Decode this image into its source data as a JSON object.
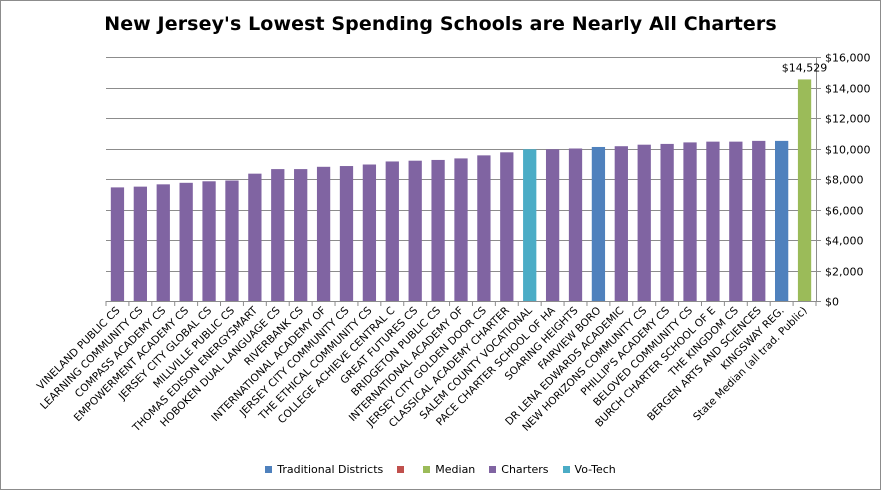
{
  "chart_data": {
    "type": "bar",
    "title": "New Jersey's Lowest Spending Schools are Nearly All Charters",
    "ylim": [
      0,
      16000
    ],
    "yticks": [
      "$0",
      "$2,000",
      "$4,000",
      "$6,000",
      "$8,000",
      "$10,000",
      "$12,000",
      "$14,000",
      "$16,000"
    ],
    "ytick_values": [
      0,
      2000,
      4000,
      6000,
      8000,
      10000,
      12000,
      14000,
      16000
    ],
    "y_axis_side": "right",
    "grid": true,
    "legend_position": "bottom",
    "categories": [
      "VINELAND PUBLIC CS",
      "LEARNING COMMUNITY CS",
      "COMPASS ACADEMY CS",
      "EMPOWERMENT ACADEMY CS",
      "JERSEY CITY GLOBAL CS",
      "MILLVILLE PUBLIC CS",
      "THOMAS EDISON ENERGYSMART",
      "HOBOKEN DUAL LANGUAGE CS",
      "RIVERBANK CS",
      "INTERNATIONAL ACADEMY OF",
      "JERSEY CITY COMMUNITY CS",
      "THE ETHICAL COMMUNITY CS",
      "COLLEGE ACHIEVE CENTRAL C",
      "GREAT FUTURES CS",
      "BRIDGETON PUBLIC CS",
      "INTERNATIONAL ACADEMY OF",
      "JERSEY CITY GOLDEN DOOR CS",
      "CLASSICAL ACADEMY CHARTER",
      "SALEM COUNTY VOCATIONAL",
      "PACE CHARTER SCHOOL OF HA",
      "SOARING HEIGHTS",
      "FAIRVIEW BORO",
      "DR LENA EDWARDS ACADEMIC",
      "NEW HORIZONS COMMUNITY CS",
      "PHILLIP'S ACADEMY CS",
      "BELOVED COMMUNITY CS",
      "BURCH CHARTER SCHOOL OF E",
      "THE KINGDOM CS",
      "BERGEN ARTS AND SCIENCES",
      "KINGSWAY REG.",
      "State Median (all trad. Public)"
    ],
    "values": [
      7450,
      7500,
      7650,
      7750,
      7850,
      7900,
      8350,
      8650,
      8650,
      8800,
      8850,
      8950,
      9150,
      9200,
      9250,
      9350,
      9550,
      9750,
      9950,
      9950,
      10000,
      10100,
      10150,
      10250,
      10300,
      10400,
      10450,
      10450,
      10500,
      10500,
      14529
    ],
    "groups": [
      "Charters",
      "Charters",
      "Charters",
      "Charters",
      "Charters",
      "Charters",
      "Charters",
      "Charters",
      "Charters",
      "Charters",
      "Charters",
      "Charters",
      "Charters",
      "Charters",
      "Charters",
      "Charters",
      "Charters",
      "Charters",
      "Vo-Tech",
      "Charters",
      "Charters",
      "Traditional Districts",
      "Charters",
      "Charters",
      "Charters",
      "Charters",
      "Charters",
      "Charters",
      "Charters",
      "Traditional Districts",
      "Median"
    ],
    "data_labels": [
      {
        "index": 30,
        "text": "$14,529"
      }
    ],
    "legend": [
      {
        "name": "Traditional Districts",
        "color": "#4f81bd"
      },
      {
        "name": "",
        "color": "#c0504d"
      },
      {
        "name": "Median",
        "color": "#9bbb59"
      },
      {
        "name": "Charters",
        "color": "#8064a2"
      },
      {
        "name": "Vo-Tech",
        "color": "#4bacc6"
      }
    ],
    "colors": {
      "Traditional Districts": "#4f81bd",
      "Median": "#9bbb59",
      "Charters": "#8064a2",
      "Vo-Tech": "#4bacc6",
      "gridline": "#8c8c8c",
      "axis": "#8c8c8c"
    }
  }
}
